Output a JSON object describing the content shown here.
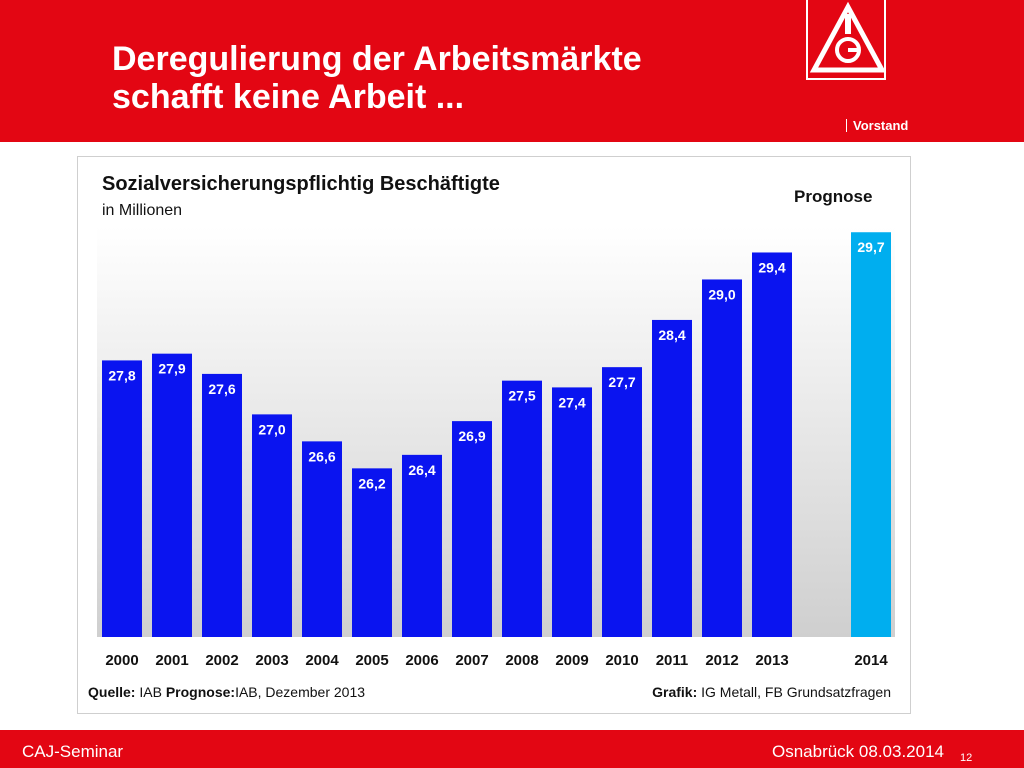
{
  "slide": {
    "title_line1": "Deregulierung der Arbeitsmärkte",
    "title_line2": "schafft keine Arbeit ...",
    "department": "Vorstand",
    "logo_icon": "ig-metall-logo-icon",
    "brand_color": "#e30613"
  },
  "footer": {
    "event": "CAJ-Seminar",
    "place_date": "Osnabrück 08.03.2014",
    "page": "12"
  },
  "chart_data": {
    "type": "bar",
    "title": "Sozialversicherungspflichtig Beschäftigte",
    "subtitle": "in Millionen",
    "forecast_label": "Prognose",
    "categories": [
      "2000",
      "2001",
      "2002",
      "2003",
      "2004",
      "2005",
      "2006",
      "2007",
      "2008",
      "2009",
      "2010",
      "2011",
      "2012",
      "2013",
      "2014"
    ],
    "values": [
      27.8,
      27.9,
      27.6,
      27.0,
      26.6,
      26.2,
      26.4,
      26.9,
      27.5,
      27.4,
      27.7,
      28.4,
      29.0,
      29.4,
      29.7
    ],
    "value_labels": [
      "27,8",
      "27,9",
      "27,6",
      "27,0",
      "26,6",
      "26,2",
      "26,4",
      "26,9",
      "27,5",
      "27,4",
      "27,7",
      "28,4",
      "29,0",
      "29,4",
      "29,7"
    ],
    "forecast_index": 14,
    "bar_color": "#0a14f0",
    "forecast_color": "#00aeef",
    "value_label_color": "#ffffff",
    "ylim": [
      23.7,
      30.0
    ],
    "source_label": "Quelle:",
    "source_value": "IAB",
    "forecast_source_label": "Prognose:",
    "forecast_source_value": "IAB, Dezember 2013",
    "graphic_label": "Grafik:",
    "graphic_value": "IG Metall,  FB Grundsatzfragen"
  }
}
